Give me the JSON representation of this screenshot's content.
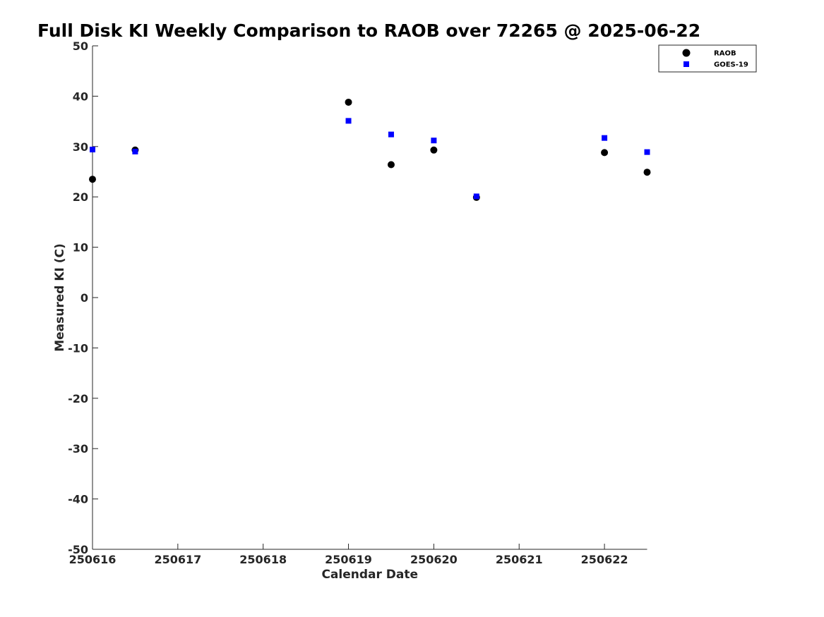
{
  "chart_data": {
    "type": "scatter",
    "title": "Full Disk KI Weekly Comparison to RAOB over 72265 @ 2025-06-22",
    "xlabel": "Calendar Date",
    "ylabel": "Measured KI (C)",
    "xlim": [
      0,
      6.5
    ],
    "ylim": [
      -50,
      50
    ],
    "x_ticks": [
      0,
      1,
      2,
      3,
      4,
      5,
      6
    ],
    "x_tick_labels": [
      "250616",
      "250617",
      "250618",
      "250619",
      "250620",
      "250621",
      "250622"
    ],
    "y_ticks": [
      50,
      40,
      30,
      20,
      10,
      0,
      -10,
      -20,
      -30,
      -40,
      -50
    ],
    "y_tick_labels": [
      "50",
      "40",
      "30",
      "20",
      "10",
      "0",
      "-10",
      "-20",
      "-30",
      "-40",
      "-50"
    ],
    "grid": false,
    "legend_position": "top-right",
    "series": [
      {
        "name": "RAOB",
        "marker": "circle",
        "color": "#000000",
        "x": [
          0,
          0.5,
          3,
          3.5,
          4,
          4.5,
          6,
          6.5
        ],
        "y": [
          23.5,
          29.3,
          38.8,
          26.4,
          29.3,
          19.9,
          28.8,
          24.9
        ]
      },
      {
        "name": "GOES-19",
        "marker": "square",
        "color": "#0000ff",
        "x": [
          0,
          0.5,
          3,
          3.5,
          4,
          4.5,
          6,
          6.5
        ],
        "y": [
          29.4,
          29.0,
          35.1,
          32.4,
          31.2,
          20.1,
          31.7,
          28.9
        ]
      }
    ]
  }
}
